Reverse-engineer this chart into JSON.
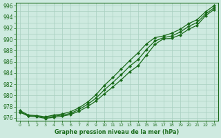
{
  "title": "Graphe pression niveau de la mer (hPa)",
  "xlabel_hours": [
    0,
    1,
    2,
    3,
    4,
    5,
    6,
    7,
    8,
    9,
    10,
    11,
    12,
    13,
    14,
    15,
    16,
    17,
    18,
    19,
    20,
    21,
    22,
    23
  ],
  "line_min": [
    977.0,
    976.3,
    976.2,
    975.9,
    976.1,
    976.3,
    976.6,
    977.2,
    978.0,
    979.0,
    980.3,
    981.5,
    982.8,
    984.2,
    985.3,
    987.2,
    989.1,
    990.1,
    990.2,
    990.8,
    991.8,
    992.5,
    994.2,
    995.3
  ],
  "line_max": [
    977.3,
    976.5,
    976.4,
    976.2,
    976.5,
    976.7,
    977.1,
    977.8,
    978.8,
    980.1,
    981.8,
    983.2,
    984.7,
    986.2,
    987.6,
    989.2,
    990.3,
    990.6,
    991.1,
    991.8,
    992.8,
    993.5,
    994.9,
    996.0
  ],
  "line_mean": [
    977.1,
    976.4,
    976.3,
    976.0,
    976.3,
    976.5,
    976.8,
    977.5,
    978.4,
    979.5,
    981.0,
    982.3,
    983.7,
    985.2,
    986.4,
    988.2,
    989.7,
    990.3,
    990.6,
    991.3,
    992.3,
    993.0,
    994.5,
    995.6
  ],
  "ylim": [
    975.5,
    996.5
  ],
  "yticks": [
    976,
    978,
    980,
    982,
    984,
    986,
    988,
    990,
    992,
    994,
    996
  ],
  "line_color": "#1a6b1a",
  "bg_color": "#ceeae0",
  "grid_color": "#a8cfc0",
  "tick_label_color": "#1a6b1a",
  "marker": "D",
  "markersize": 2.0,
  "linewidth": 0.9
}
